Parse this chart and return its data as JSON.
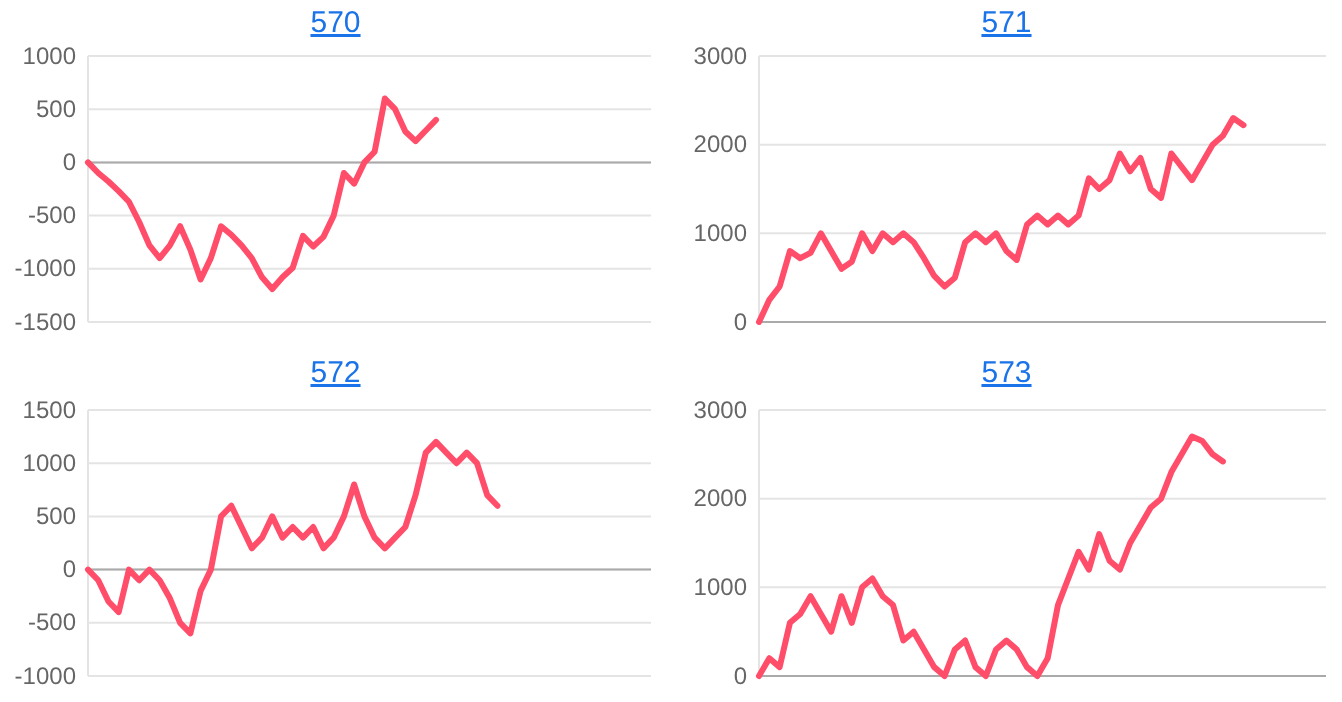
{
  "chart_data": [
    {
      "type": "line",
      "title": "570",
      "categories": [
        null,
        null,
        null,
        null,
        null,
        null,
        null,
        null,
        null,
        null,
        null,
        null,
        null,
        null,
        null,
        null,
        null,
        null,
        null,
        null,
        null,
        null,
        null,
        null,
        null,
        null,
        null,
        null,
        null,
        null,
        null,
        null,
        null,
        null,
        null,
        null,
        null,
        null,
        null,
        null,
        null,
        null,
        null,
        null,
        null,
        null,
        null,
        null,
        null,
        null,
        null,
        null,
        null,
        null,
        null,
        null
      ],
      "series": [
        {
          "color": "#ff4d6a",
          "values": [
            0,
            -100,
            -180,
            -270,
            -370,
            -560,
            -780,
            -900,
            -780,
            -600,
            -820,
            -1100,
            -900,
            -600,
            -680,
            -780,
            -900,
            -1080,
            -1190,
            -1080,
            -990,
            -690,
            -790,
            -700,
            -500,
            -100,
            -200,
            0,
            100,
            600,
            500,
            290,
            200,
            300,
            400,
            null,
            null,
            null,
            null,
            null,
            null,
            null,
            null,
            null,
            null,
            null,
            null,
            null,
            null,
            null,
            null,
            null,
            null,
            null,
            null,
            null
          ]
        }
      ],
      "ylim": [
        -1500,
        1000
      ],
      "yticks": [
        -1500,
        -1000,
        -500,
        0,
        500,
        1000
      ],
      "grid": "y",
      "marker": "none"
    },
    {
      "type": "line",
      "title": "571",
      "categories": [
        null,
        null,
        null,
        null,
        null,
        null,
        null,
        null,
        null,
        null,
        null,
        null,
        null,
        null,
        null,
        null,
        null,
        null,
        null,
        null,
        null,
        null,
        null,
        null,
        null,
        null,
        null,
        null,
        null,
        null,
        null,
        null,
        null,
        null,
        null,
        null,
        null,
        null,
        null,
        null,
        null,
        null,
        null,
        null,
        null,
        null,
        null,
        null,
        null,
        null,
        null,
        null,
        null,
        null,
        null,
        null
      ],
      "series": [
        {
          "color": "#ff4d6a",
          "values": [
            0,
            250,
            400,
            800,
            720,
            780,
            1000,
            800,
            600,
            680,
            1000,
            800,
            1000,
            900,
            1000,
            900,
            720,
            520,
            400,
            500,
            900,
            1000,
            900,
            1000,
            800,
            700,
            1100,
            1200,
            1100,
            1200,
            1100,
            1200,
            1620,
            1500,
            1600,
            1900,
            1700,
            1850,
            1500,
            1400,
            1900,
            1750,
            1600,
            1800,
            2000,
            2100,
            2300,
            2220,
            null,
            null,
            null,
            null,
            null,
            null,
            null,
            null
          ]
        }
      ],
      "ylim": [
        0,
        3000
      ],
      "yticks": [
        0,
        1000,
        2000,
        3000
      ],
      "grid": "y",
      "marker": "none"
    },
    {
      "type": "line",
      "title": "572",
      "categories": [
        null,
        null,
        null,
        null,
        null,
        null,
        null,
        null,
        null,
        null,
        null,
        null,
        null,
        null,
        null,
        null,
        null,
        null,
        null,
        null,
        null,
        null,
        null,
        null,
        null,
        null,
        null,
        null,
        null,
        null,
        null,
        null,
        null,
        null,
        null,
        null,
        null,
        null,
        null,
        null,
        null,
        null,
        null,
        null,
        null,
        null,
        null,
        null,
        null,
        null,
        null,
        null,
        null,
        null,
        null,
        null
      ],
      "series": [
        {
          "color": "#ff4d6a",
          "values": [
            0,
            -100,
            -300,
            -400,
            0,
            -100,
            0,
            -100,
            -270,
            -500,
            -600,
            -200,
            0,
            500,
            600,
            400,
            200,
            300,
            500,
            300,
            400,
            300,
            400,
            200,
            300,
            500,
            800,
            500,
            300,
            200,
            300,
            400,
            700,
            1100,
            1200,
            1100,
            1000,
            1100,
            1000,
            700,
            600,
            null,
            null,
            null,
            null,
            null,
            null,
            null,
            null,
            null,
            null,
            null,
            null,
            null,
            null,
            null
          ]
        }
      ],
      "ylim": [
        -1000,
        1500
      ],
      "yticks": [
        -1000,
        -500,
        0,
        500,
        1000,
        1500
      ],
      "grid": "y",
      "marker": "none"
    },
    {
      "type": "line",
      "title": "573",
      "categories": [
        null,
        null,
        null,
        null,
        null,
        null,
        null,
        null,
        null,
        null,
        null,
        null,
        null,
        null,
        null,
        null,
        null,
        null,
        null,
        null,
        null,
        null,
        null,
        null,
        null,
        null,
        null,
        null,
        null,
        null,
        null,
        null,
        null,
        null,
        null,
        null,
        null,
        null,
        null,
        null,
        null,
        null,
        null,
        null,
        null,
        null,
        null,
        null,
        null,
        null,
        null,
        null,
        null,
        null,
        null,
        null
      ],
      "series": [
        {
          "color": "#ff4d6a",
          "values": [
            0,
            200,
            100,
            600,
            700,
            900,
            700,
            500,
            900,
            600,
            1000,
            1100,
            900,
            800,
            400,
            500,
            300,
            100,
            0,
            300,
            400,
            100,
            0,
            300,
            400,
            300,
            100,
            0,
            200,
            800,
            1100,
            1400,
            1200,
            1600,
            1300,
            1200,
            1500,
            1700,
            1900,
            2000,
            2300,
            2500,
            2700,
            2650,
            2500,
            2420,
            null,
            null,
            null,
            null,
            null,
            null,
            null,
            null,
            null,
            null
          ]
        }
      ],
      "ylim": [
        0,
        3000
      ],
      "yticks": [
        0,
        1000,
        2000,
        3000
      ],
      "grid": "y",
      "marker": "none"
    }
  ]
}
